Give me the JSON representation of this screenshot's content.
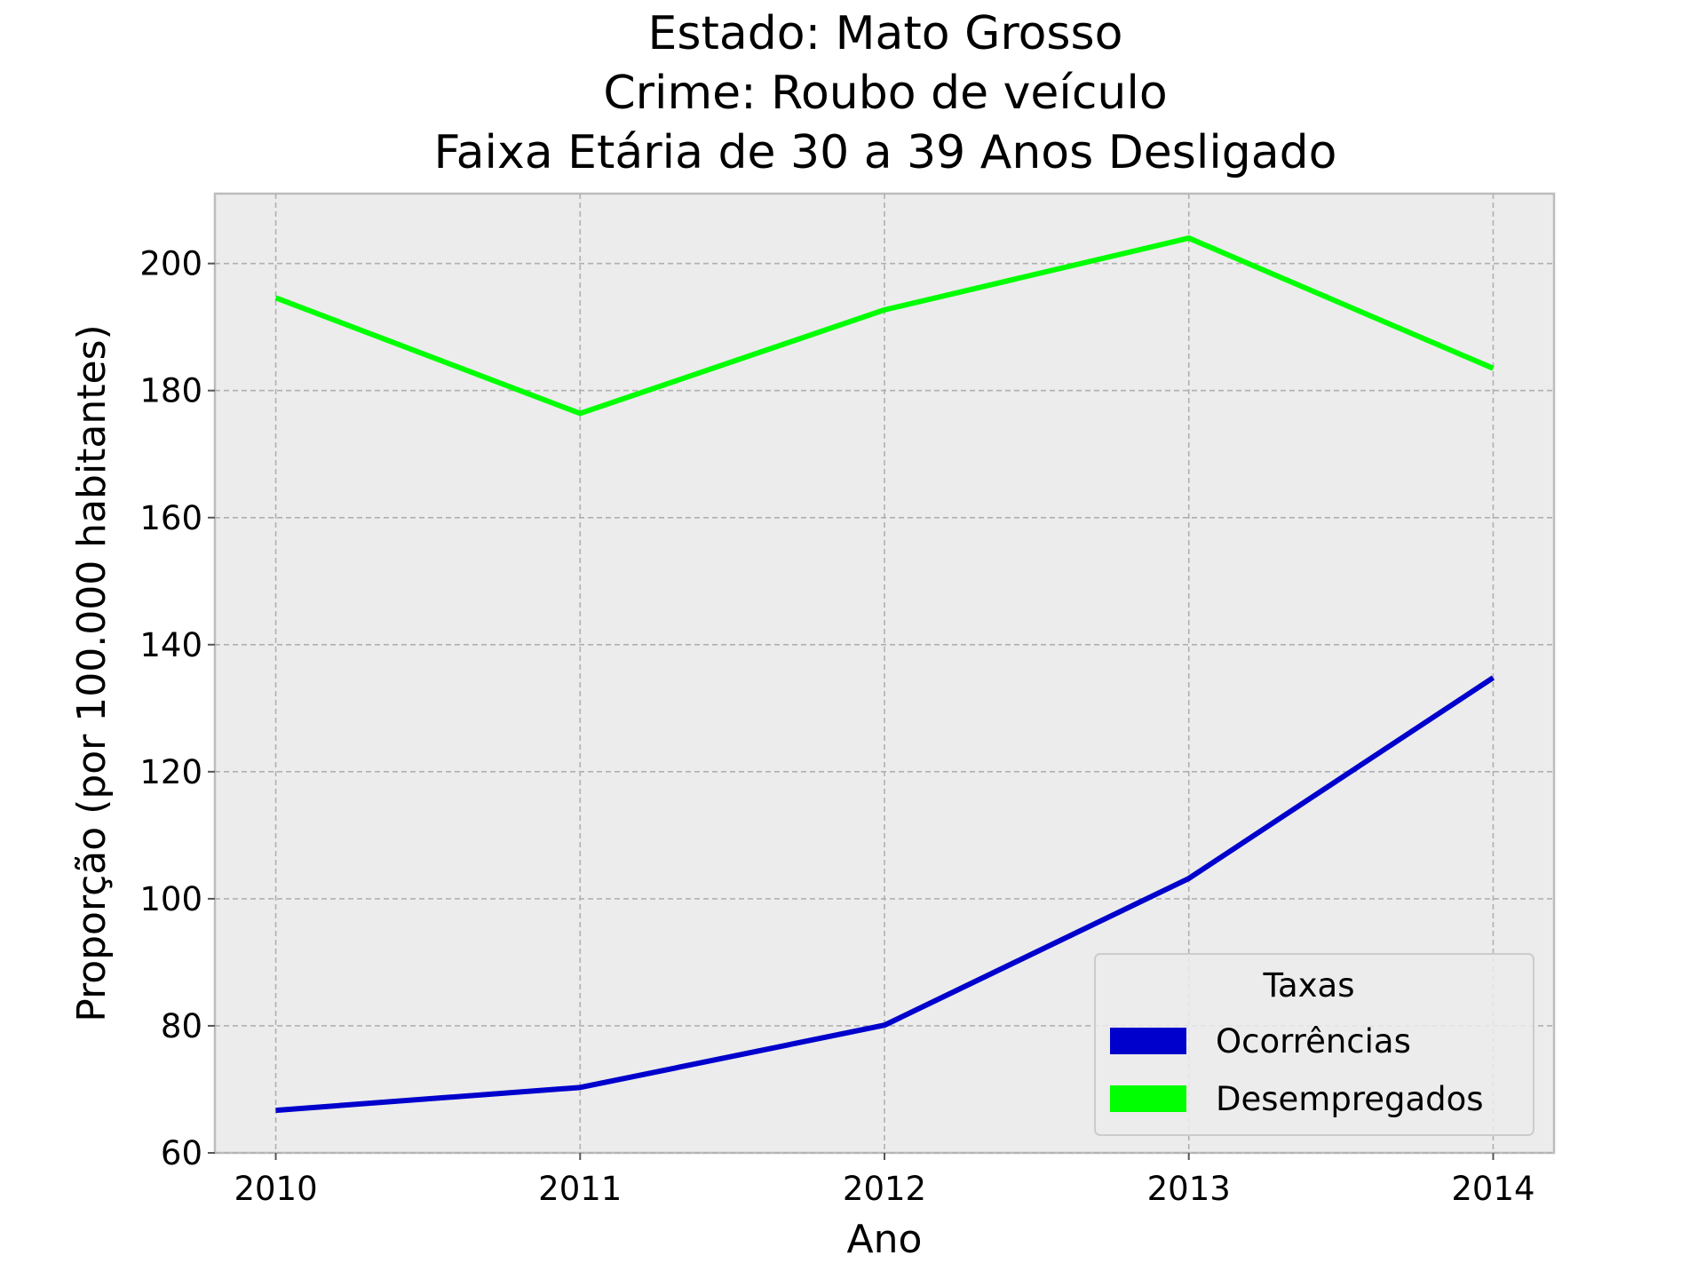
{
  "chart_data": {
    "type": "line",
    "title_lines": [
      "Estado: Mato Grosso",
      "Crime: Roubo de veículo",
      "Faixa Etária de 30 a 39 Anos   Desligado"
    ],
    "xlabel": "Ano",
    "ylabel": "Proporção (por 100.000 habitantes)",
    "x": [
      2010,
      2011,
      2012,
      2013,
      2014
    ],
    "x_tick_labels": [
      "2010",
      "2011",
      "2012",
      "2013",
      "2014"
    ],
    "y_ticks": [
      60,
      80,
      100,
      120,
      140,
      160,
      180,
      200
    ],
    "y_tick_labels": [
      "60",
      "80",
      "100",
      "120",
      "140",
      "160",
      "180",
      "200"
    ],
    "xlim": [
      2009.8,
      2014.2
    ],
    "ylim": [
      60,
      211
    ],
    "grid": true,
    "legend": {
      "title": "Taxas",
      "placement": "lower-right"
    },
    "series": [
      {
        "name": "Ocorrências",
        "color": "#0000cd",
        "values": [
          66.7,
          70.3,
          80.1,
          103.2,
          134.8
        ]
      },
      {
        "name": "Desempregados",
        "color": "#00ff00",
        "values": [
          194.6,
          176.4,
          192.7,
          204.0,
          183.5
        ]
      }
    ],
    "plot_background": "#ececec",
    "grid_color": "#b0b0b0"
  }
}
